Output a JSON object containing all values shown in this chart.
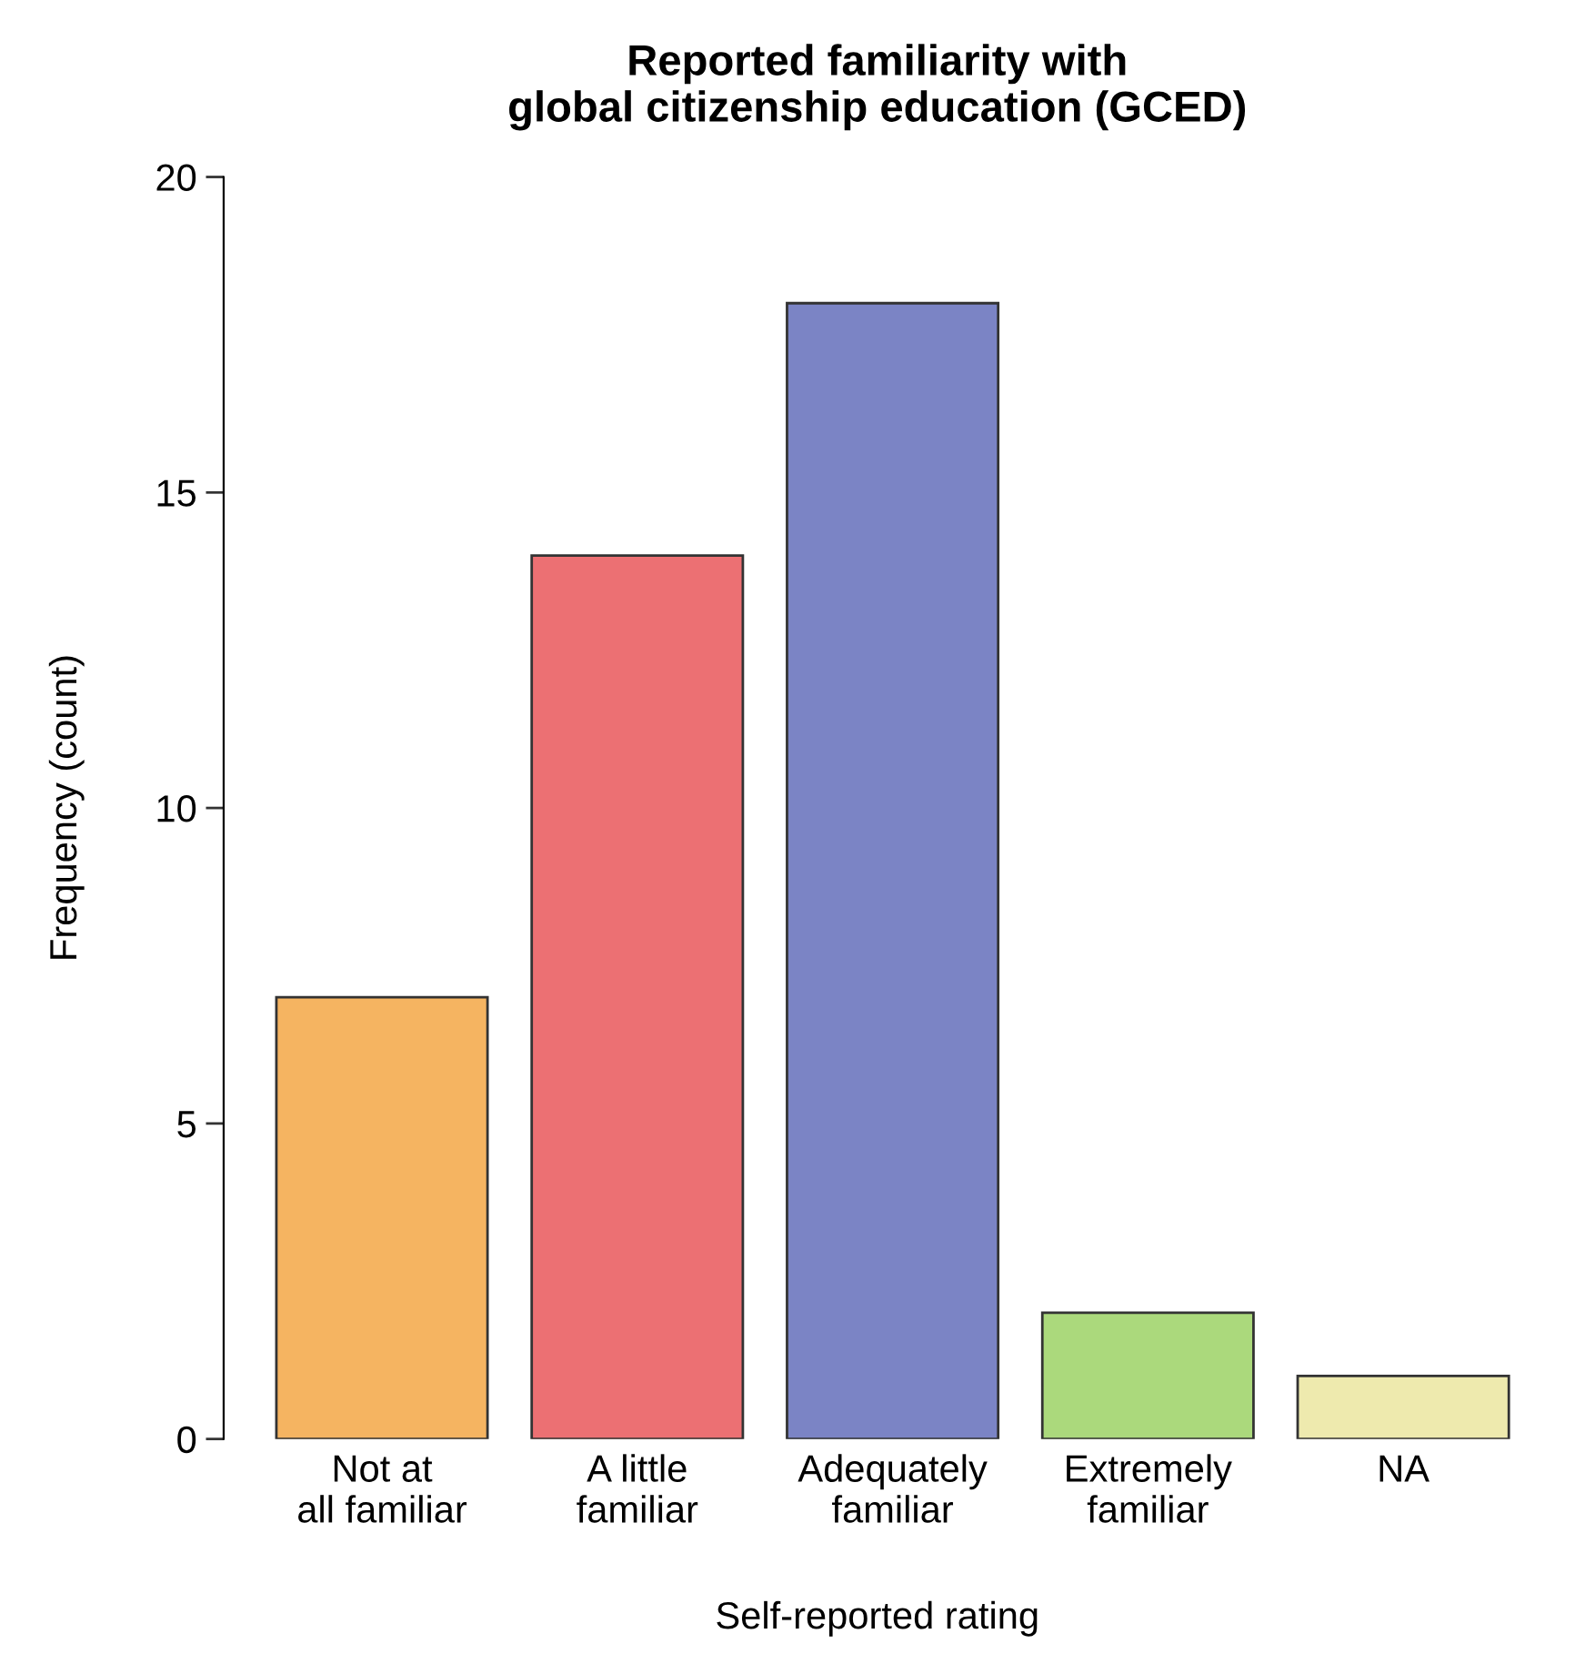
{
  "chart_data": {
    "type": "bar",
    "title": "Reported familiarity with\nglobal citizenship education (GCED)",
    "xlabel": "Self-reported rating",
    "ylabel": "Frequency (count)",
    "categories": [
      "Not at\nall familiar",
      "A little\nfamiliar",
      "Adequately\nfamiliar",
      "Extremely\nfamiliar",
      "NA"
    ],
    "values": [
      7,
      14,
      18,
      2,
      1
    ],
    "colors": [
      "#f5b461",
      "#ec7073",
      "#7b84c5",
      "#abd97c",
      "#eeeaae"
    ],
    "ylim": [
      0,
      20
    ],
    "yticks": [
      0,
      5,
      10,
      15,
      20
    ],
    "grid": false,
    "legend": false
  }
}
